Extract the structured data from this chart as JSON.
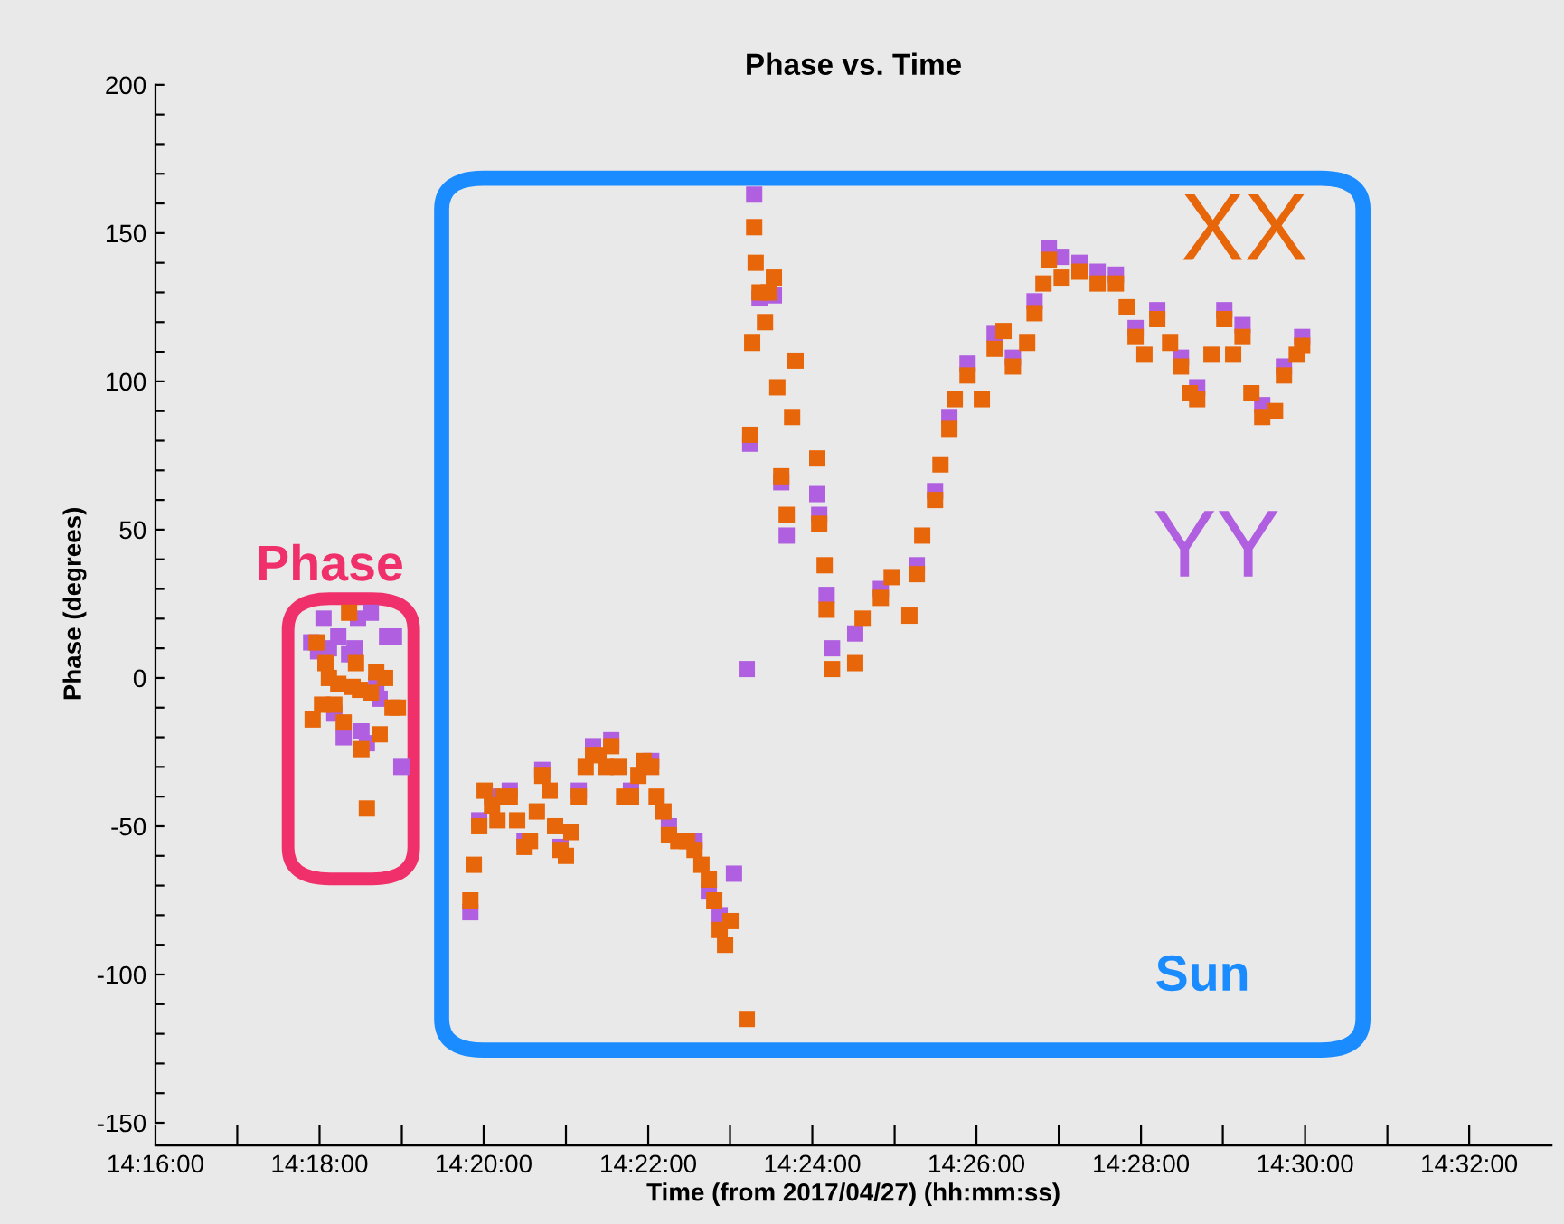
{
  "chart_data": {
    "type": "scatter",
    "title": "Phase vs. Time",
    "xlabel": "Time (from 2017/04/27) (hh:mm:ss)",
    "ylabel": "Phase (degrees)",
    "xlim": [
      14.2667,
      14.55
    ],
    "ylim": [
      -150,
      200
    ],
    "xticks": [
      {
        "value": 14.2667,
        "label": "14:16:00"
      },
      {
        "value": 14.2833,
        "label": null
      },
      {
        "value": 14.3,
        "label": "14:18:00"
      },
      {
        "value": 14.3167,
        "label": null
      },
      {
        "value": 14.3333,
        "label": "14:20:00"
      },
      {
        "value": 14.35,
        "label": null
      },
      {
        "value": 14.3667,
        "label": "14:22:00"
      },
      {
        "value": 14.3833,
        "label": null
      },
      {
        "value": 14.4,
        "label": "14:24:00"
      },
      {
        "value": 14.4167,
        "label": null
      },
      {
        "value": 14.4333,
        "label": "14:26:00"
      },
      {
        "value": 14.45,
        "label": null
      },
      {
        "value": 14.4667,
        "label": "14:28:00"
      },
      {
        "value": 14.4833,
        "label": null
      },
      {
        "value": 14.5,
        "label": "14:30:00"
      },
      {
        "value": 14.5167,
        "label": null
      },
      {
        "value": 14.5333,
        "label": "14:32:00"
      }
    ],
    "yticks": [
      -150,
      {
        "value": -140,
        "label": null
      },
      {
        "value": -130,
        "label": null
      },
      {
        "value": -120,
        "label": null
      },
      {
        "value": -110,
        "label": null
      },
      -100,
      {
        "value": -90,
        "label": null
      },
      {
        "value": -80,
        "label": null
      },
      {
        "value": -70,
        "label": null
      },
      {
        "value": -60,
        "label": null
      },
      -50,
      {
        "value": -40,
        "label": null
      },
      {
        "value": -30,
        "label": null
      },
      {
        "value": -20,
        "label": null
      },
      {
        "value": -10,
        "label": null
      },
      0,
      {
        "value": 10,
        "label": null
      },
      {
        "value": 20,
        "label": null
      },
      {
        "value": 30,
        "label": null
      },
      {
        "value": 40,
        "label": null
      },
      50,
      {
        "value": 60,
        "label": null
      },
      {
        "value": 70,
        "label": null
      },
      {
        "value": 80,
        "label": null
      },
      {
        "value": 90,
        "label": null
      },
      100,
      {
        "value": 110,
        "label": null
      },
      {
        "value": 120,
        "label": null
      },
      {
        "value": 130,
        "label": null
      },
      {
        "value": 140,
        "label": null
      },
      150,
      {
        "value": 160,
        "label": null
      },
      {
        "value": 170,
        "label": null
      },
      {
        "value": 180,
        "label": null
      },
      {
        "value": 190,
        "label": null
      },
      200
    ],
    "grid": false,
    "marker": "square",
    "legend": false,
    "series": [
      {
        "name": "YY",
        "color": "#b05fe0",
        "x": [
          14.2983,
          14.2997,
          14.3008,
          14.3019,
          14.303,
          14.3038,
          14.3049,
          14.306,
          14.3071,
          14.3078,
          14.3085,
          14.3096,
          14.3104,
          14.3115,
          14.3122,
          14.3137,
          14.3151,
          14.3166,
          14.3306,
          14.3324,
          14.335,
          14.3386,
          14.3416,
          14.3452,
          14.3489,
          14.3526,
          14.3555,
          14.3592,
          14.3632,
          14.3673,
          14.3709,
          14.3761,
          14.379,
          14.3812,
          14.3841,
          14.3867,
          14.3874,
          14.3882,
          14.3893,
          14.3922,
          14.3937,
          14.3948,
          14.401,
          14.4014,
          14.4029,
          14.404,
          14.4087,
          14.4139,
          14.4212,
          14.4249,
          14.4278,
          14.4315,
          14.437,
          14.4407,
          14.4451,
          14.448,
          14.4506,
          14.4542,
          14.4579,
          14.4616,
          14.4656,
          14.47,
          14.4748,
          14.4781,
          14.4836,
          14.4873,
          14.4913,
          14.4957,
          14.4994
        ],
        "values": [
          12,
          9,
          20,
          10,
          -12,
          14,
          -20,
          8,
          10,
          20,
          -18,
          -22,
          22,
          -2,
          -7,
          14,
          14,
          -30,
          -79,
          -48,
          -40,
          -38,
          -55,
          -31,
          -57,
          -38,
          -23,
          -21,
          -38,
          -28,
          -50,
          -55,
          -72,
          -80,
          -66,
          3,
          79,
          163,
          128,
          129,
          66,
          48,
          62,
          55,
          28,
          10,
          15,
          30,
          38,
          63,
          88,
          106,
          116,
          108,
          127,
          145,
          142,
          140,
          137,
          136,
          118,
          124,
          108,
          98,
          124,
          119,
          92,
          105,
          115
        ]
      },
      {
        "name": "XX",
        "color": "#e8660a",
        "x": [
          14.2986,
          14.2994,
          14.3005,
          14.3012,
          14.3019,
          14.303,
          14.3038,
          14.3049,
          14.306,
          14.3067,
          14.3074,
          14.3082,
          14.3085,
          14.3096,
          14.3104,
          14.3115,
          14.3122,
          14.3133,
          14.3148,
          14.3159,
          14.3306,
          14.3313,
          14.3324,
          14.3335,
          14.335,
          14.3361,
          14.3372,
          14.3386,
          14.3401,
          14.3416,
          14.3427,
          14.3441,
          14.3452,
          14.3467,
          14.3478,
          14.3489,
          14.35,
          14.3511,
          14.3526,
          14.354,
          14.3555,
          14.3566,
          14.3581,
          14.3592,
          14.3607,
          14.3618,
          14.3632,
          14.3647,
          14.3658,
          14.3673,
          14.3684,
          14.3698,
          14.3709,
          14.3728,
          14.3746,
          14.3761,
          14.3775,
          14.379,
          14.3801,
          14.3812,
          14.3823,
          14.3834,
          14.3867,
          14.3874,
          14.3878,
          14.3882,
          14.3885,
          14.3893,
          14.3904,
          14.3911,
          14.3922,
          14.3929,
          14.3937,
          14.3948,
          14.3959,
          14.3966,
          14.401,
          14.4014,
          14.4025,
          14.4029,
          14.404,
          14.4087,
          14.4102,
          14.4139,
          14.4161,
          14.4197,
          14.4212,
          14.4223,
          14.4249,
          14.426,
          14.4278,
          14.4289,
          14.4315,
          14.4344,
          14.437,
          14.4388,
          14.4407,
          14.4436,
          14.4451,
          14.4469,
          14.448,
          14.4506,
          14.4542,
          14.4579,
          14.4616,
          14.4638,
          14.4656,
          14.4674,
          14.47,
          14.4726,
          14.4748,
          14.4766,
          14.4781,
          14.481,
          14.4836,
          14.4854,
          14.4873,
          14.4891,
          14.4913,
          14.4939,
          14.4957,
          14.4983,
          14.4994
        ],
        "values": [
          -14,
          12,
          -9,
          5,
          0,
          -9,
          -2,
          -15,
          22,
          -3,
          5,
          -4,
          -24,
          -44,
          -5,
          2,
          -19,
          0,
          -10,
          -10,
          -75,
          -63,
          -50,
          -38,
          -43,
          -48,
          -40,
          -40,
          -48,
          -57,
          -55,
          -45,
          -33,
          -38,
          -50,
          -58,
          -60,
          -52,
          -40,
          -30,
          -26,
          -26,
          -30,
          -23,
          -30,
          -40,
          -40,
          -33,
          -28,
          -30,
          -40,
          -45,
          -53,
          -55,
          -55,
          -58,
          -63,
          -68,
          -75,
          -85,
          -90,
          -82,
          -115,
          82,
          113,
          152,
          140,
          130,
          120,
          130,
          135,
          98,
          68,
          55,
          88,
          107,
          74,
          52,
          38,
          23,
          3,
          5,
          20,
          27,
          34,
          21,
          35,
          48,
          60,
          72,
          84,
          94,
          102,
          94,
          111,
          117,
          105,
          113,
          123,
          133,
          141,
          135,
          137,
          133,
          133,
          125,
          115,
          109,
          121,
          113,
          105,
          96,
          94,
          109,
          121,
          109,
          115,
          96,
          88,
          90,
          102,
          109,
          112
        ]
      }
    ],
    "annotations": [
      "Phase",
      "Sun"
    ]
  }
}
